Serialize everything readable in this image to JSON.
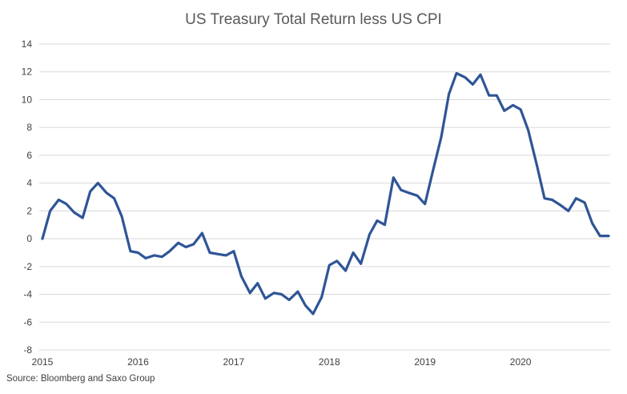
{
  "chart_data": {
    "type": "line",
    "title": "US Treasury Total Return less US CPI",
    "xlabel": "",
    "ylabel": "",
    "ylim": [
      -8,
      14
    ],
    "yticks": [
      -8,
      -6,
      -4,
      -2,
      0,
      2,
      4,
      6,
      8,
      10,
      12,
      14
    ],
    "xlim": [
      2015.0,
      2020.92
    ],
    "xticks": [
      "2015",
      "2016",
      "2017",
      "2018",
      "2019",
      "2020"
    ],
    "grid": "horizontal",
    "legend": "none",
    "line_color": "#2f5597",
    "series": [
      {
        "x": [
          2015.0,
          2015.08,
          2015.17,
          2015.25,
          2015.33,
          2015.42,
          2015.5,
          2015.58,
          2015.67,
          2015.75,
          2015.83,
          2015.92,
          2016.0,
          2016.08,
          2016.17,
          2016.25,
          2016.33,
          2016.42,
          2016.5,
          2016.58,
          2016.67,
          2016.75,
          2016.83,
          2016.92,
          2017.0,
          2017.08,
          2017.17,
          2017.25,
          2017.33,
          2017.42,
          2017.5,
          2017.58,
          2017.67,
          2017.75,
          2017.83,
          2017.92,
          2018.0,
          2018.08,
          2018.17,
          2018.25,
          2018.33,
          2018.42,
          2018.5,
          2018.58,
          2018.67,
          2018.75,
          2018.83,
          2018.92,
          2019.0,
          2019.08,
          2019.17,
          2019.25,
          2019.33,
          2019.42,
          2019.5,
          2019.58,
          2019.67,
          2019.75,
          2019.83,
          2019.92,
          2020.0,
          2020.08,
          2020.17,
          2020.25,
          2020.33,
          2020.42,
          2020.5,
          2020.58,
          2020.67,
          2020.75,
          2020.83,
          2020.92
        ],
        "y": [
          0.0,
          2.0,
          2.8,
          2.5,
          1.9,
          1.5,
          3.4,
          4.0,
          3.3,
          2.9,
          1.6,
          -0.9,
          -1.0,
          -1.4,
          -1.2,
          -1.3,
          -0.9,
          -0.3,
          -0.6,
          -0.4,
          0.4,
          -1.0,
          -1.1,
          -1.2,
          -0.9,
          -2.7,
          -3.9,
          -3.2,
          -4.3,
          -3.9,
          -4.0,
          -4.4,
          -3.8,
          -4.8,
          -5.4,
          -4.2,
          -1.9,
          -1.6,
          -2.3,
          -1.0,
          -1.8,
          0.3,
          1.3,
          1.0,
          4.4,
          3.5,
          3.3,
          3.1,
          2.5,
          4.8,
          7.3,
          10.4,
          11.9,
          11.6,
          11.1,
          11.8,
          10.3,
          10.3,
          9.2,
          9.6,
          9.3,
          7.8,
          5.3,
          2.9,
          2.8,
          2.4,
          2.0,
          2.9,
          2.6,
          1.1,
          0.2,
          0.2
        ]
      }
    ]
  },
  "source": "Source: Bloomberg and Saxo Group"
}
